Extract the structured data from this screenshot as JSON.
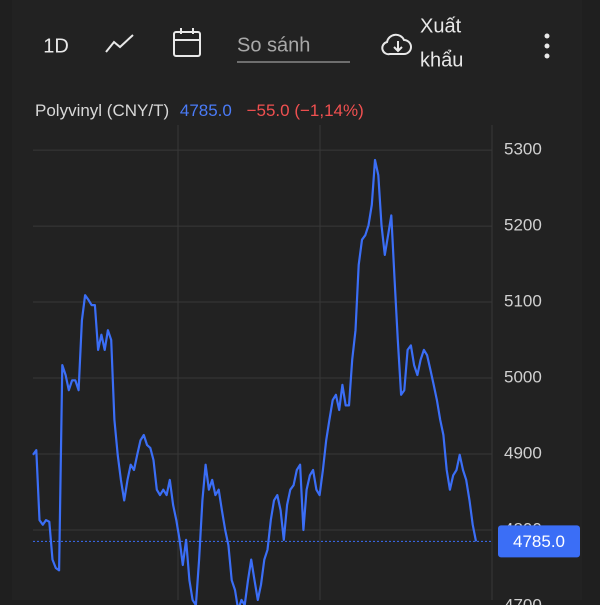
{
  "toolbar": {
    "interval": "1D",
    "compare_placeholder": "So sánh",
    "export": [
      "Xuất",
      "khẩu"
    ]
  },
  "chart_data": {
    "type": "line",
    "price_label": "4785.0",
    "change_label": "−55.0 (−1,14%)",
    "series": [
      {
        "name": "Polyvinyl (CNY/T)",
        "color": "#3b6ef6",
        "values": [
          4899,
          4905,
          4813,
          4807,
          4813,
          4811,
          4761,
          4750,
          4747,
          5017,
          5004,
          4984,
          4997,
          4997,
          4984,
          5076,
          5109,
          5103,
          5096,
          5096,
          5037,
          5057,
          5037,
          5063,
          5050,
          4945,
          4899,
          4866,
          4839,
          4866,
          4886,
          4879,
          4899,
          4918,
          4925,
          4912,
          4908,
          4892,
          4853,
          4846,
          4853,
          4846,
          4866,
          4833,
          4813,
          4787,
          4754,
          4787,
          4734,
          4708,
          4701,
          4761,
          4839,
          4886,
          4853,
          4866,
          4846,
          4853,
          4826,
          4800,
          4780,
          4734,
          4721,
          4695,
          4708,
          4701,
          4734,
          4761,
          4734,
          4708,
          4728,
          4761,
          4774,
          4813,
          4839,
          4846,
          4826,
          4787,
          4833,
          4853,
          4859,
          4879,
          4886,
          4800,
          4853,
          4872,
          4879,
          4853,
          4846,
          4879,
          4918,
          4945,
          4971,
          4978,
          4958,
          4991,
          4964,
          4964,
          5024,
          5063,
          5149,
          5182,
          5188,
          5201,
          5228,
          5287,
          5267,
          5201,
          5162,
          5188,
          5214,
          5129,
          5050,
          4978,
          4984,
          5037,
          5043,
          5017,
          5004,
          5024,
          5037,
          5030,
          5011,
          4991,
          4971,
          4945,
          4925,
          4879,
          4853,
          4872,
          4879,
          4899,
          4879,
          4866,
          4839,
          4807,
          4785
        ]
      }
    ],
    "last_value": 4785,
    "ylim": [
      4700,
      5333
    ],
    "yticks": [
      4700,
      4800,
      4900,
      5000,
      5100,
      5200,
      5300
    ],
    "grid": true
  }
}
